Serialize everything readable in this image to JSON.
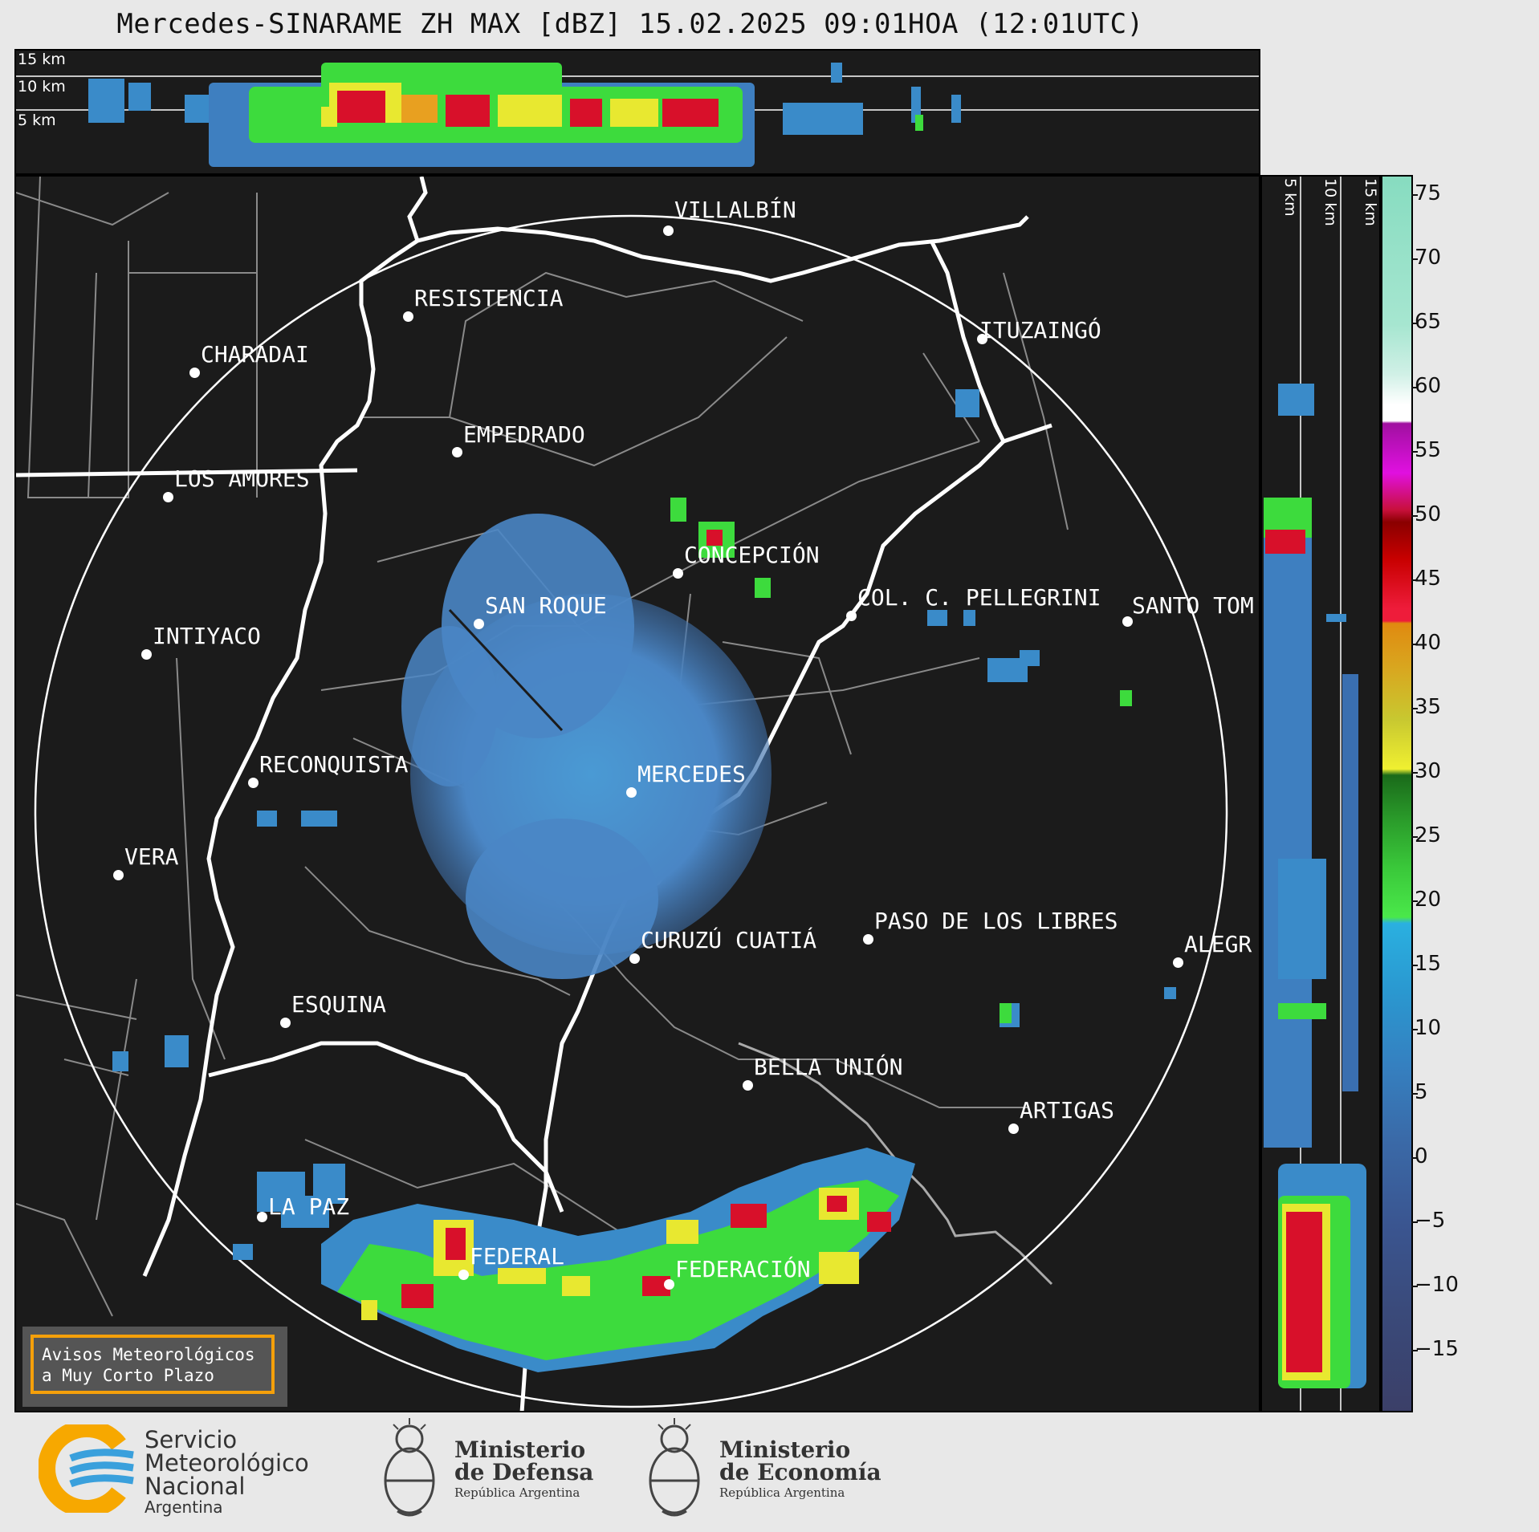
{
  "title": "Mercedes-SINARAME ZH MAX [dBZ] 15.02.2025 09:01HOA (12:01UTC)",
  "top_panel": {
    "altitude_labels": [
      "15 km",
      "10 km",
      "5 km"
    ]
  },
  "side_panel": {
    "altitude_labels": [
      "5 km",
      "10 km",
      "15 km"
    ]
  },
  "cities": [
    {
      "name": "VILLALBÍN"
    },
    {
      "name": "RESISTENCIA"
    },
    {
      "name": "CHARADAI"
    },
    {
      "name": "ITUZAINGÓ"
    },
    {
      "name": "EMPEDRADO"
    },
    {
      "name": "LOS AMORES"
    },
    {
      "name": "CONCEPCIÓN"
    },
    {
      "name": "SAN ROQUE"
    },
    {
      "name": "COL. C. PELLEGRINI"
    },
    {
      "name": "SANTO TOM"
    },
    {
      "name": "INTIYACO"
    },
    {
      "name": "MERCEDES"
    },
    {
      "name": "RECONQUISTA"
    },
    {
      "name": "VERA"
    },
    {
      "name": "CURUZÚ CUATIÁ"
    },
    {
      "name": "PASO DE LOS LIBRES"
    },
    {
      "name": "ALEGR"
    },
    {
      "name": "ESQUINA"
    },
    {
      "name": "BELLA UNIÓN"
    },
    {
      "name": "ARTIGAS"
    },
    {
      "name": "LA PAZ"
    },
    {
      "name": "FEDERAL"
    },
    {
      "name": "FEDERACIÓN"
    }
  ],
  "colorbar": {
    "unit": "dBZ",
    "ticks": [
      "75",
      "70",
      "65",
      "60",
      "55",
      "50",
      "45",
      "40",
      "35",
      "30",
      "25",
      "20",
      "15",
      "10",
      "5",
      "0",
      "−5",
      "−10",
      "−15"
    ],
    "range": [
      -20,
      77
    ]
  },
  "warning_box": {
    "line1": "Avisos Meteorológicos",
    "line2": "a Muy Corto Plazo"
  },
  "footer": {
    "smn": {
      "line1": "Servicio",
      "line2": "Meteorológico",
      "line3": "Nacional",
      "line4": "Argentina"
    },
    "defensa": {
      "line1": "Ministerio",
      "line2": "de Defensa",
      "line3": "República Argentina"
    },
    "economia": {
      "line1": "Ministerio",
      "line2": "de Economía",
      "line3": "República Argentina"
    }
  },
  "colors": {
    "map_background": "#1b1b1b",
    "borders": "#888888",
    "rivers": "#ffffff",
    "weak_echo": "#4a86c5",
    "moderate_echo": "#3ddb3d",
    "strong_echo": "#d8102a",
    "warning_border": "#f5a00a"
  }
}
